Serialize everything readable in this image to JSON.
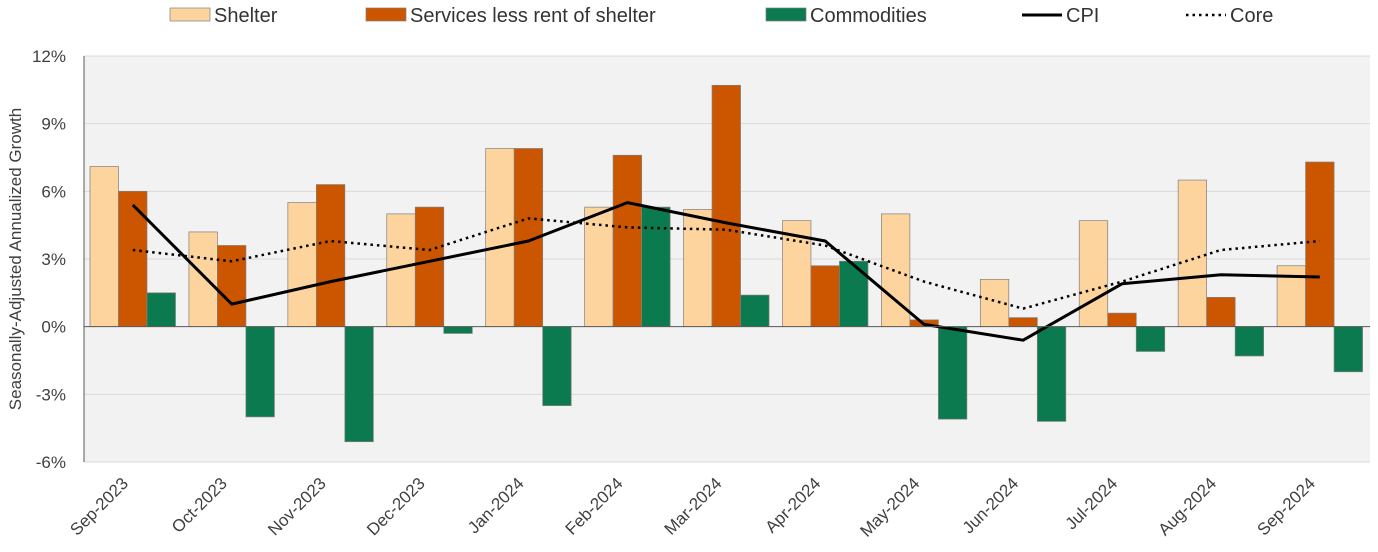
{
  "chart_data": {
    "type": "bar",
    "title": "",
    "xlabel": "",
    "ylabel": "Seasonally-Adjusted Annualized Growth",
    "ylim": [
      -6,
      12
    ],
    "ytick_values": [
      -6,
      -3,
      0,
      3,
      6,
      9,
      12
    ],
    "ytick_labels": [
      "-6%",
      "-3%",
      "0%",
      "3%",
      "6%",
      "9%",
      "12%"
    ],
    "grid": true,
    "legend_position": "top",
    "categories": [
      "Sep-2023",
      "Oct-2023",
      "Nov-2023",
      "Dec-2023",
      "Jan-2024",
      "Feb-2024",
      "Mar-2024",
      "Apr-2024",
      "May-2024",
      "Jun-2024",
      "Jul-2024",
      "Aug-2024",
      "Sep-2024"
    ],
    "series": [
      {
        "name": "Shelter",
        "kind": "bar",
        "color": "#FDD49E",
        "values": [
          7.1,
          4.2,
          5.5,
          5.0,
          7.9,
          5.3,
          5.2,
          4.7,
          5.0,
          2.1,
          4.7,
          6.5,
          2.7
        ]
      },
      {
        "name": "Services less rent of shelter",
        "kind": "bar",
        "color": "#CC5500",
        "values": [
          6.0,
          3.6,
          6.3,
          5.3,
          7.9,
          7.6,
          10.7,
          2.7,
          0.3,
          0.4,
          0.6,
          1.3,
          7.3
        ]
      },
      {
        "name": "Commodities",
        "kind": "bar",
        "color": "#0B7A4E",
        "values": [
          1.5,
          -4.0,
          -5.1,
          -0.3,
          -3.5,
          5.3,
          1.4,
          2.9,
          -4.1,
          -4.2,
          -1.1,
          -1.3,
          -2.0
        ]
      },
      {
        "name": "CPI",
        "kind": "line",
        "style": "solid",
        "color": "#000000",
        "values": [
          5.4,
          1.0,
          2.0,
          2.9,
          3.8,
          5.5,
          4.6,
          3.8,
          0.1,
          -0.6,
          1.9,
          2.3,
          2.2
        ]
      },
      {
        "name": "Core",
        "kind": "line",
        "style": "dotted",
        "color": "#000000",
        "values": [
          3.4,
          2.9,
          3.8,
          3.4,
          4.8,
          4.4,
          4.3,
          3.6,
          2.0,
          0.8,
          2.0,
          3.4,
          3.8
        ]
      }
    ]
  }
}
